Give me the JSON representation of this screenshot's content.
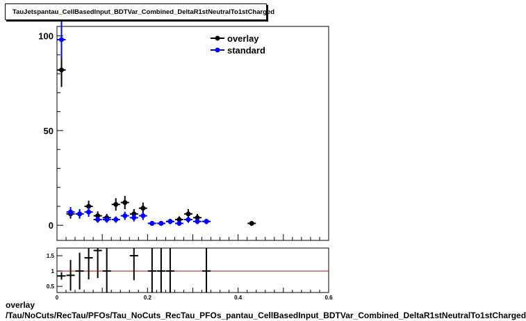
{
  "title": "TauJetspantau_CellBasedInput_BDTVar_Combined_DeltaR1stNeutralTo1stCharged",
  "footer": {
    "line1": "overlay",
    "line2": "/Tau/NoCuts/RecTau/PFOs/Tau_NoCuts_RecTau_PFOs_pantau_CellBasedInput_BDTVar_Combined_DeltaR1stNeutralTo1stCharged"
  },
  "colors": {
    "overlay": "#000000",
    "standard": "#0000ff",
    "ratio_line": "#cc0000"
  },
  "chart_data": [
    {
      "type": "scatter",
      "title": "TauJetspantau_CellBasedInput_BDTVar_Combined_DeltaR1stNeutralTo1stCharged",
      "xlabel": "",
      "ylabel": "",
      "xlim": [
        0,
        0.6
      ],
      "ylim": [
        -8,
        105
      ],
      "y_ticks": [
        0,
        50,
        100
      ],
      "y_tick_labels": [
        "0",
        "50",
        "100"
      ],
      "legend": {
        "placement": "top-right",
        "entries": [
          "overlay",
          "standard"
        ]
      },
      "series": [
        {
          "name": "overlay",
          "color": "#000000",
          "x": [
            0.01,
            0.03,
            0.05,
            0.07,
            0.09,
            0.11,
            0.13,
            0.15,
            0.17,
            0.19,
            0.21,
            0.23,
            0.25,
            0.27,
            0.29,
            0.31,
            0.33,
            0.43
          ],
          "y": [
            82,
            6,
            6,
            10,
            5,
            4,
            11,
            12,
            6,
            9,
            1,
            1,
            2,
            3,
            6,
            4,
            2,
            1
          ],
          "err": [
            9,
            2.5,
            2.5,
            3,
            2.3,
            2,
            3.3,
            3.5,
            2.5,
            3,
            1,
            1,
            1.4,
            1.7,
            2.5,
            2,
            1.4,
            1
          ]
        },
        {
          "name": "standard",
          "color": "#0000ff",
          "x": [
            0.01,
            0.03,
            0.05,
            0.07,
            0.09,
            0.11,
            0.13,
            0.15,
            0.17,
            0.19,
            0.21,
            0.23,
            0.25,
            0.27,
            0.29,
            0.31,
            0.33
          ],
          "y": [
            98,
            7,
            6,
            7,
            3,
            3,
            3,
            5,
            4,
            5,
            1,
            1,
            2,
            1,
            3,
            2,
            2
          ],
          "err": [
            10,
            2.6,
            2.4,
            2.6,
            1.7,
            1.7,
            1.7,
            2.2,
            2,
            2.2,
            1,
            1,
            1.4,
            1,
            1.7,
            1.4,
            1.4
          ]
        }
      ]
    },
    {
      "type": "scatter",
      "title": "",
      "xlabel": "",
      "ylabel": "",
      "xlim": [
        0,
        0.6
      ],
      "ylim": [
        0.3,
        1.75
      ],
      "x_ticks": [
        0,
        0.2,
        0.4,
        0.6
      ],
      "x_tick_labels": [
        "0",
        "0.2",
        "0.4",
        "0.6"
      ],
      "y_ticks": [
        0.5,
        1,
        1.5
      ],
      "y_tick_labels": [
        "0.5",
        "1",
        "1.5"
      ],
      "reference_line": 1,
      "series": [
        {
          "name": "",
          "color": "#000000",
          "x": [
            0.01,
            0.03,
            0.05,
            0.07,
            0.09,
            0.11,
            0.17,
            0.21,
            0.23,
            0.25,
            0.33
          ],
          "y": [
            0.84,
            0.86,
            1.0,
            1.43,
            1.67,
            1.0,
            1.5,
            1.0,
            1.0,
            1.0,
            1.0
          ],
          "err": [
            0.12,
            0.5,
            0.6,
            0.7,
            0.9,
            1.0,
            0.8,
            1.4,
            1.4,
            1.0,
            1.4
          ]
        }
      ]
    }
  ]
}
